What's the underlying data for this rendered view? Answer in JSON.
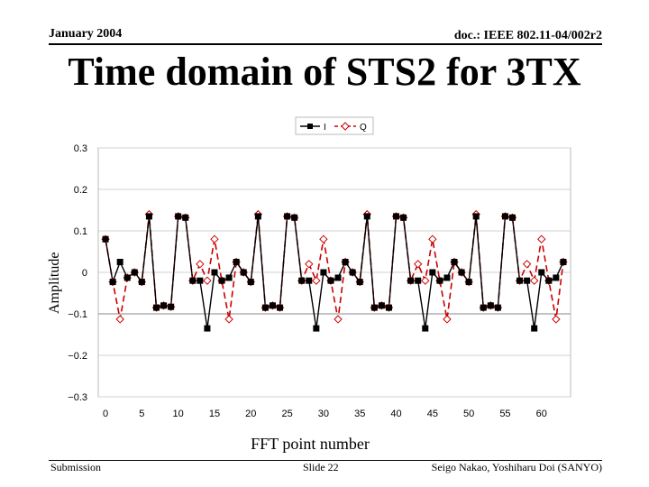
{
  "header": {
    "left": "January 2004",
    "right": "doc.: IEEE 802.11-04/002r2"
  },
  "footer": {
    "left": "Submission",
    "center": "Slide 22",
    "right": "Seigo Nakao, Yoshiharu Doi (SANYO)"
  },
  "chart_data": {
    "type": "line",
    "title": "Time domain of STS2 for 3TX",
    "xlabel": "FFT point number",
    "ylabel": "Amplitude",
    "xlim": [
      -1,
      64
    ],
    "ylim": [
      -0.3,
      0.3
    ],
    "xticks": [
      0,
      5,
      10,
      15,
      20,
      25,
      30,
      35,
      40,
      45,
      50,
      55,
      60
    ],
    "yticks": [
      0.3,
      0.2,
      0.1,
      0,
      -0.1,
      -0.2,
      -0.3
    ],
    "ytick_labels": [
      "0.3",
      "0.2",
      "0.1",
      "0",
      "−0.1",
      "−0.2",
      "−0.3"
    ],
    "reference_line": -0.1,
    "grid": true,
    "legend_position": "top-center",
    "series": [
      {
        "name": "I",
        "color": "#000000",
        "style": "solid",
        "marker": "filled-square",
        "values": [
          0.08,
          -0.023,
          0.025,
          -0.013,
          0.0,
          -0.023,
          0.135,
          -0.085,
          -0.08,
          -0.083,
          0.135,
          0.132,
          -0.02,
          -0.02,
          -0.135,
          0.0,
          -0.02,
          -0.013,
          0.025,
          0.0,
          -0.023,
          0.135,
          -0.085,
          -0.08,
          -0.085,
          0.135,
          0.132,
          -0.02,
          -0.02,
          -0.135,
          0.0,
          -0.02,
          -0.013,
          0.025,
          0.0,
          -0.023,
          0.135,
          -0.085,
          -0.08,
          -0.085,
          0.135,
          0.132,
          -0.02,
          -0.02,
          -0.135,
          0.0,
          -0.02,
          -0.013,
          0.025,
          0.0,
          -0.023,
          0.135,
          -0.085,
          -0.08,
          -0.085,
          0.135,
          0.132,
          -0.02,
          -0.02,
          -0.135,
          0.0,
          -0.02,
          -0.013,
          0.025
        ]
      },
      {
        "name": "Q",
        "color": "#cc0000",
        "style": "dashed",
        "marker": "open-diamond",
        "values": [
          0.08,
          -0.023,
          -0.113,
          -0.013,
          0.0,
          -0.023,
          0.14,
          -0.085,
          -0.08,
          -0.083,
          0.135,
          0.132,
          -0.02,
          0.02,
          -0.02,
          0.08,
          -0.02,
          -0.113,
          0.025,
          0.0,
          -0.023,
          0.14,
          -0.085,
          -0.08,
          -0.085,
          0.135,
          0.132,
          -0.02,
          0.02,
          -0.02,
          0.08,
          -0.02,
          -0.113,
          0.025,
          0.0,
          -0.023,
          0.14,
          -0.085,
          -0.08,
          -0.085,
          0.135,
          0.132,
          -0.02,
          0.02,
          -0.02,
          0.08,
          -0.02,
          -0.113,
          0.025,
          0.0,
          -0.023,
          0.14,
          -0.085,
          -0.08,
          -0.085,
          0.135,
          0.132,
          -0.02,
          0.02,
          -0.02,
          0.08,
          -0.02,
          -0.113,
          0.025
        ]
      }
    ]
  }
}
